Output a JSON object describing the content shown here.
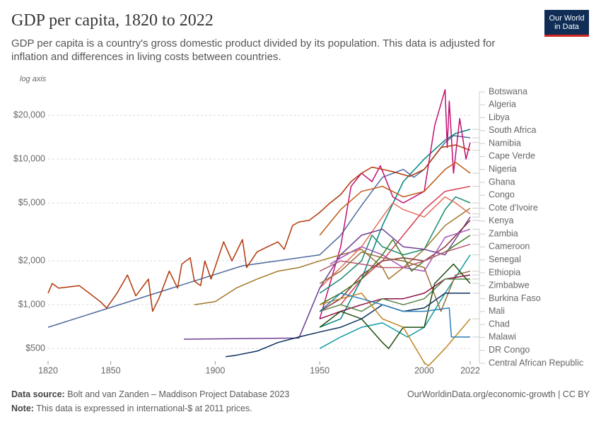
{
  "logo": {
    "line1": "Our World",
    "line2": "in Data"
  },
  "chart_data": {
    "type": "line",
    "title": "GDP per capita, 1820 to 2022",
    "subtitle": "GDP per capita is a country's gross domestic product divided by its population. This data is adjusted for inflation and differences in living costs between countries.",
    "axis_note": "log axis",
    "log_scale": true,
    "grid": true,
    "xlim": [
      1820,
      2022
    ],
    "ylim": [
      410,
      32000
    ],
    "xticks": [
      1820,
      1850,
      1900,
      1950,
      2000,
      2022
    ],
    "yticks": [
      {
        "value": 500,
        "label": "$500"
      },
      {
        "value": 1000,
        "label": "$1,000"
      },
      {
        "value": 2000,
        "label": "$2,000"
      },
      {
        "value": 5000,
        "label": "$5,000"
      },
      {
        "value": 10000,
        "label": "$10,000"
      },
      {
        "value": 20000,
        "label": "$20,000"
      }
    ],
    "source_label": "Data source:",
    "source": "Bolt and van Zanden – Maddison Project Database 2023",
    "note_label": "Note:",
    "note": "This data is expressed in international-$ at 2011 prices.",
    "url": "OurWorldinData.org/economic-growth | CC BY",
    "series": [
      {
        "name": "Botswana",
        "color": "#00847e",
        "x": [
          1950,
          1960,
          1970,
          1980,
          1990,
          2000,
          2010,
          2015,
          2022
        ],
        "values": [
          700,
          800,
          1500,
          3500,
          7000,
          10000,
          13500,
          15000,
          16000
        ]
      },
      {
        "name": "Algeria",
        "color": "#4c6a9c",
        "x": [
          1820,
          1913,
          1950,
          1960,
          1970,
          1980,
          1990,
          1995,
          2000,
          2010,
          2014,
          2022
        ],
        "values": [
          700,
          1850,
          2200,
          3000,
          4800,
          7500,
          8500,
          7500,
          8500,
          13000,
          14500,
          14000
        ]
      },
      {
        "name": "Libya",
        "color": "#c10f72",
        "x": [
          1950,
          1960,
          1965,
          1970,
          1975,
          1979,
          1985,
          1990,
          2000,
          2005,
          2010,
          2011,
          2012,
          2014,
          2017,
          2020,
          2022
        ],
        "values": [
          800,
          2500,
          6500,
          8000,
          7000,
          9000,
          5500,
          5000,
          6000,
          17000,
          30000,
          12000,
          25000,
          8000,
          19000,
          10000,
          13000
        ]
      },
      {
        "name": "South Africa",
        "color": "#b13507",
        "x": [
          1820,
          1822,
          1825,
          1835,
          1845,
          1848,
          1853,
          1858,
          1862,
          1868,
          1870,
          1873,
          1878,
          1882,
          1884,
          1888,
          1890,
          1893,
          1895,
          1898,
          1904,
          1908,
          1913,
          1915,
          1920,
          1925,
          1930,
          1933,
          1937,
          1940,
          1945,
          1950,
          1955,
          1960,
          1965,
          1970,
          1975,
          1980,
          1985,
          1993,
          2000,
          2008,
          2015,
          2022
        ],
        "values": [
          1200,
          1400,
          1300,
          1350,
          1050,
          950,
          1200,
          1600,
          1150,
          1500,
          900,
          1100,
          1700,
          1300,
          1900,
          2100,
          1450,
          1350,
          2000,
          1500,
          2700,
          2000,
          2800,
          1800,
          2300,
          2500,
          2700,
          2400,
          3500,
          3700,
          3800,
          4300,
          5000,
          5700,
          7000,
          8000,
          8800,
          8500,
          8200,
          7600,
          8500,
          12000,
          12500,
          11500
        ]
      },
      {
        "name": "Namibia",
        "color": "#c05917",
        "x": [
          1950,
          1960,
          1970,
          1980,
          1990,
          2000,
          2010,
          2015,
          2022
        ],
        "values": [
          3000,
          4500,
          6000,
          6500,
          5500,
          6000,
          8500,
          9500,
          8000
        ]
      },
      {
        "name": "Cape Verde",
        "color": "#d73c50",
        "x": [
          1960,
          1970,
          1980,
          1990,
          2000,
          2010,
          2022
        ],
        "values": [
          1000,
          1500,
          2000,
          3000,
          4500,
          6000,
          6500
        ]
      },
      {
        "name": "Nigeria",
        "color": "#18896e",
        "x": [
          1950,
          1960,
          1970,
          1975,
          1980,
          1990,
          2000,
          2010,
          2015,
          2022
        ],
        "values": [
          1200,
          1500,
          2000,
          3000,
          2500,
          2200,
          2400,
          4500,
          5500,
          5000
        ]
      },
      {
        "name": "Ghana",
        "color": "#a2772b",
        "x": [
          1890,
          1900,
          1910,
          1920,
          1930,
          1940,
          1950,
          1960,
          1970,
          1980,
          1983,
          1990,
          2000,
          2010,
          2022
        ],
        "values": [
          1000,
          1050,
          1300,
          1500,
          1700,
          1800,
          2000,
          2200,
          2400,
          1800,
          1500,
          1800,
          2400,
          3500,
          4600
        ]
      },
      {
        "name": "Congo",
        "color": "#e56e5a",
        "x": [
          1950,
          1960,
          1970,
          1980,
          1985,
          1990,
          2000,
          2010,
          2015,
          2022
        ],
        "values": [
          1300,
          1800,
          2500,
          4000,
          5000,
          4500,
          4000,
          5500,
          5000,
          4200
        ]
      },
      {
        "name": "Cote d'Ivoire",
        "color": "#6d3e91",
        "x": [
          1885,
          1940,
          1950,
          1960,
          1970,
          1980,
          1990,
          2000,
          2010,
          2022
        ],
        "values": [
          580,
          590,
          1300,
          2200,
          3000,
          3300,
          2500,
          2400,
          2200,
          4000
        ]
      },
      {
        "name": "Kenya",
        "color": "#883039",
        "x": [
          1950,
          1960,
          1970,
          1980,
          1990,
          2000,
          2010,
          2022
        ],
        "values": [
          900,
          1100,
          1600,
          2000,
          2100,
          2000,
          2500,
          3800
        ]
      },
      {
        "name": "Zambia",
        "color": "#a652ba",
        "x": [
          1955,
          1965,
          1970,
          1980,
          1990,
          2000,
          2010,
          2022
        ],
        "values": [
          1900,
          2300,
          2500,
          2200,
          1800,
          1700,
          2900,
          3300
        ]
      },
      {
        "name": "Cameroon",
        "color": "#3c7d20",
        "x": [
          1950,
          1960,
          1970,
          1980,
          1985,
          1994,
          2000,
          2010,
          2022
        ],
        "values": [
          1000,
          1200,
          1500,
          2200,
          2800,
          1700,
          2000,
          2300,
          3000
        ]
      },
      {
        "name": "Senegal",
        "color": "#b85670",
        "x": [
          1950,
          1960,
          1970,
          1980,
          1990,
          2000,
          2010,
          2022
        ],
        "values": [
          1700,
          2000,
          1900,
          1800,
          1800,
          2000,
          2300,
          2600
        ]
      },
      {
        "name": "Ethiopia",
        "color": "#0d9ba0",
        "x": [
          1950,
          1960,
          1970,
          1980,
          1992,
          2000,
          2010,
          2022
        ],
        "values": [
          500,
          600,
          700,
          750,
          600,
          700,
          1200,
          2200
        ]
      },
      {
        "name": "Zimbabwe",
        "color": "#996d39",
        "x": [
          1950,
          1960,
          1970,
          1980,
          1990,
          2000,
          2008,
          2015,
          2022
        ],
        "values": [
          1400,
          1700,
          2300,
          2100,
          2000,
          1800,
          900,
          1600,
          1700
        ]
      },
      {
        "name": "Burkina Faso",
        "color": "#8c0f46",
        "x": [
          1950,
          1960,
          1970,
          1980,
          1990,
          2000,
          2010,
          2022
        ],
        "values": [
          800,
          900,
          1000,
          1100,
          1100,
          1200,
          1500,
          1600
        ]
      },
      {
        "name": "Mali",
        "color": "#578145",
        "x": [
          1950,
          1960,
          1970,
          1980,
          1990,
          2000,
          2010,
          2022
        ],
        "values": [
          900,
          1000,
          900,
          1100,
          1000,
          1100,
          1500,
          1500
        ]
      },
      {
        "name": "Chad",
        "color": "#1d4d10",
        "x": [
          1950,
          1960,
          1970,
          1980,
          1983,
          1990,
          2000,
          2005,
          2014,
          2022
        ],
        "values": [
          700,
          900,
          800,
          550,
          500,
          700,
          700,
          1400,
          1900,
          1400
        ]
      },
      {
        "name": "Malawi",
        "color": "#0a2f5c",
        "x": [
          1905,
          1910,
          1920,
          1930,
          1940,
          1950,
          1960,
          1970,
          1980,
          1990,
          2000,
          2010,
          2022
        ],
        "values": [
          440,
          450,
          480,
          550,
          600,
          650,
          700,
          800,
          1000,
          900,
          950,
          1200,
          1200
        ]
      },
      {
        "name": "DR Congo",
        "color": "#be8422",
        "x": [
          1950,
          1960,
          1970,
          1980,
          1990,
          2000,
          2002,
          2010,
          2022
        ],
        "values": [
          1000,
          1100,
          1200,
          800,
          700,
          400,
          380,
          500,
          800
        ]
      },
      {
        "name": "Central African Republic",
        "color": "#2c7fb8",
        "x": [
          1950,
          1960,
          1970,
          1980,
          1990,
          2000,
          2012,
          2013,
          2022
        ],
        "values": [
          900,
          1200,
          1100,
          1000,
          900,
          900,
          950,
          600,
          600
        ]
      }
    ]
  }
}
